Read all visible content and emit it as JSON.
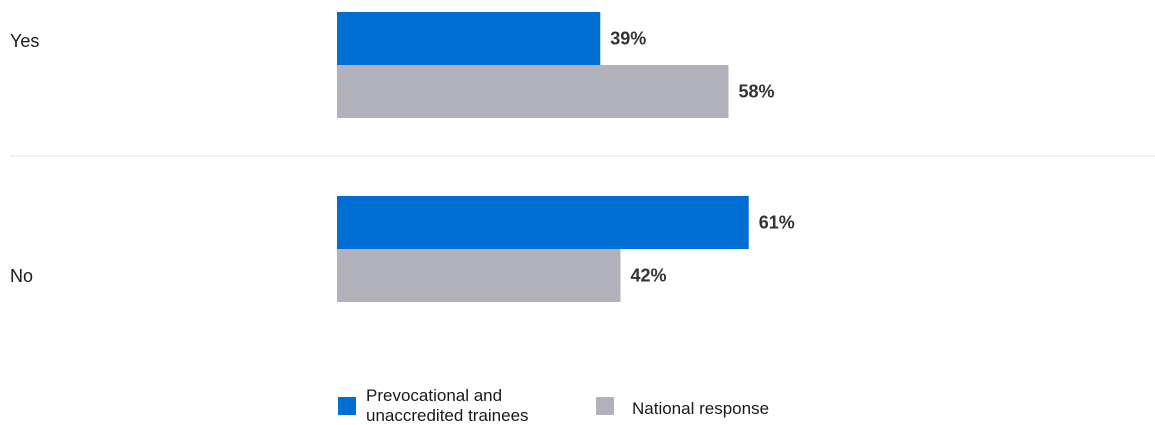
{
  "chart_data": {
    "type": "bar",
    "orientation": "horizontal",
    "categories": [
      "Yes",
      "No"
    ],
    "series": [
      {
        "name": "Prevocational and unaccredited trainees",
        "values": [
          39,
          61
        ],
        "color": "#006ed2"
      },
      {
        "name": "National response",
        "values": [
          58,
          42
        ],
        "color": "#b2b2bd"
      }
    ],
    "value_labels": [
      [
        "39%",
        "61%"
      ],
      [
        "58%",
        "42%"
      ]
    ],
    "xlim": [
      0,
      100
    ],
    "grid": false,
    "legend_position": "bottom"
  },
  "legend": {
    "series1_lines": [
      "Prevocational and",
      "unaccredited trainees"
    ],
    "series2_label": "National response"
  }
}
